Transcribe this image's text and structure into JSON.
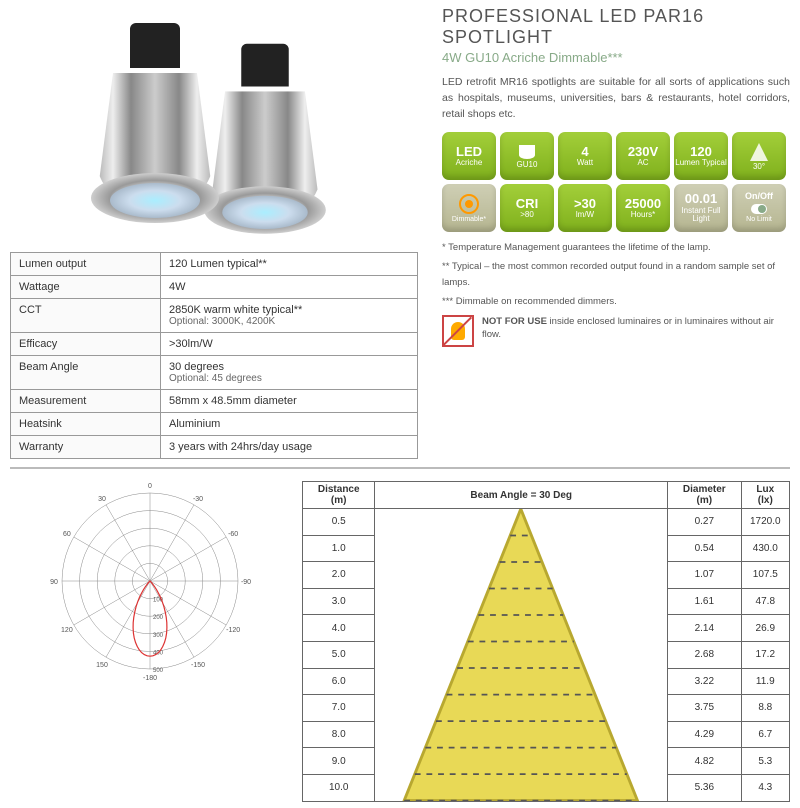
{
  "header": {
    "title": "PROFESSIONAL LED PAR16 SPOTLIGHT",
    "subtitle": "4W GU10 Acriche Dimmable***",
    "description": "LED retrofit MR16 spotlights are suitable for all sorts of applications such as hospitals, museums, universities, bars & restaurants, hotel corridors, retail shops etc."
  },
  "specs": {
    "rows": [
      {
        "label": "Lumen output",
        "value": "120 Lumen typical**",
        "sub": ""
      },
      {
        "label": "Wattage",
        "value": "4W",
        "sub": ""
      },
      {
        "label": "CCT",
        "value": "2850K warm white typical**",
        "sub": "Optional: 3000K, 4200K"
      },
      {
        "label": "Efficacy",
        "value": ">30lm/W",
        "sub": ""
      },
      {
        "label": "Beam Angle",
        "value": "30 degrees",
        "sub": "Optional: 45 degrees"
      },
      {
        "label": "Measurement",
        "value": "58mm x 48.5mm diameter",
        "sub": ""
      },
      {
        "label": "Heatsink",
        "value": "Aluminium",
        "sub": ""
      },
      {
        "label": "Warranty",
        "value": "3 years with 24hrs/day usage",
        "sub": ""
      }
    ]
  },
  "badges": [
    {
      "big": "LED",
      "small": "Acriche",
      "alt": ""
    },
    {
      "big": "",
      "small": "GU10",
      "alt": "socket",
      "icon": "socket"
    },
    {
      "big": "4",
      "small": "Watt",
      "alt": ""
    },
    {
      "big": "230V",
      "small": "AC",
      "alt": ""
    },
    {
      "big": "120",
      "small": "Lumen Typical",
      "alt": ""
    },
    {
      "big": "",
      "small": "30°",
      "alt": "",
      "icon": "beam"
    },
    {
      "big": "",
      "small": "Dimmable*",
      "alt": "",
      "icon": "dim",
      "dim": true
    },
    {
      "big": "CRI",
      "small": ">80",
      "alt": ""
    },
    {
      "big": ">30",
      "small": "lm/W",
      "alt": ""
    },
    {
      "big": "25000",
      "small": "Hours*",
      "alt": ""
    },
    {
      "big": "00.01",
      "small": "Instant Full Light",
      "alt": "",
      "dim": true
    },
    {
      "big": "On/Off",
      "small": "No Limit",
      "alt": "",
      "icon": "switch",
      "dim": true
    }
  ],
  "notes": {
    "n1": "* Temperature Management guarantees the lifetime of the lamp.",
    "n2": "** Typical – the most common recorded output found in a random sample set of lamps.",
    "n3": "*** Dimmable on recommended dimmers.",
    "warn_bold": "NOT FOR USE",
    "warn_rest": " inside enclosed luminaires or in luminaires without air flow."
  },
  "beam": {
    "headers": {
      "dist": "Distance (m)",
      "angle": "Beam Angle = 30 Deg",
      "dia": "Diameter (m)",
      "lux": "Lux (lx)"
    },
    "rows": [
      {
        "d": "0.5",
        "dia": "0.27",
        "lux": "1720.0"
      },
      {
        "d": "1.0",
        "dia": "0.54",
        "lux": "430.0"
      },
      {
        "d": "2.0",
        "dia": "1.07",
        "lux": "107.5"
      },
      {
        "d": "3.0",
        "dia": "1.61",
        "lux": "47.8"
      },
      {
        "d": "4.0",
        "dia": "2.14",
        "lux": "26.9"
      },
      {
        "d": "5.0",
        "dia": "2.68",
        "lux": "17.2"
      },
      {
        "d": "6.0",
        "dia": "3.22",
        "lux": "11.9"
      },
      {
        "d": "7.0",
        "dia": "3.75",
        "lux": "8.8"
      },
      {
        "d": "8.0",
        "dia": "4.29",
        "lux": "6.7"
      },
      {
        "d": "9.0",
        "dia": "4.82",
        "lux": "5.3"
      },
      {
        "d": "10.0",
        "dia": "5.36",
        "lux": "4.3"
      }
    ],
    "cone_color": "#e8d956",
    "cone_stroke": "#555"
  },
  "polar": {
    "ring_labels": [
      "100",
      "200",
      "300",
      "400",
      "500"
    ],
    "angle_labels": [
      "-180",
      "-150",
      "-120",
      "-90",
      "-60",
      "-30",
      "0",
      "30",
      "60",
      "90",
      "120",
      "150",
      "180"
    ],
    "curve_color": "#d33",
    "grid_color": "#888"
  },
  "colors": {
    "badge_green_top": "#a3cf3a",
    "badge_green_bot": "#7fb01c",
    "badge_dim_top": "#cfcfb5",
    "title_color": "#555",
    "subtitle_color": "#8a8"
  }
}
